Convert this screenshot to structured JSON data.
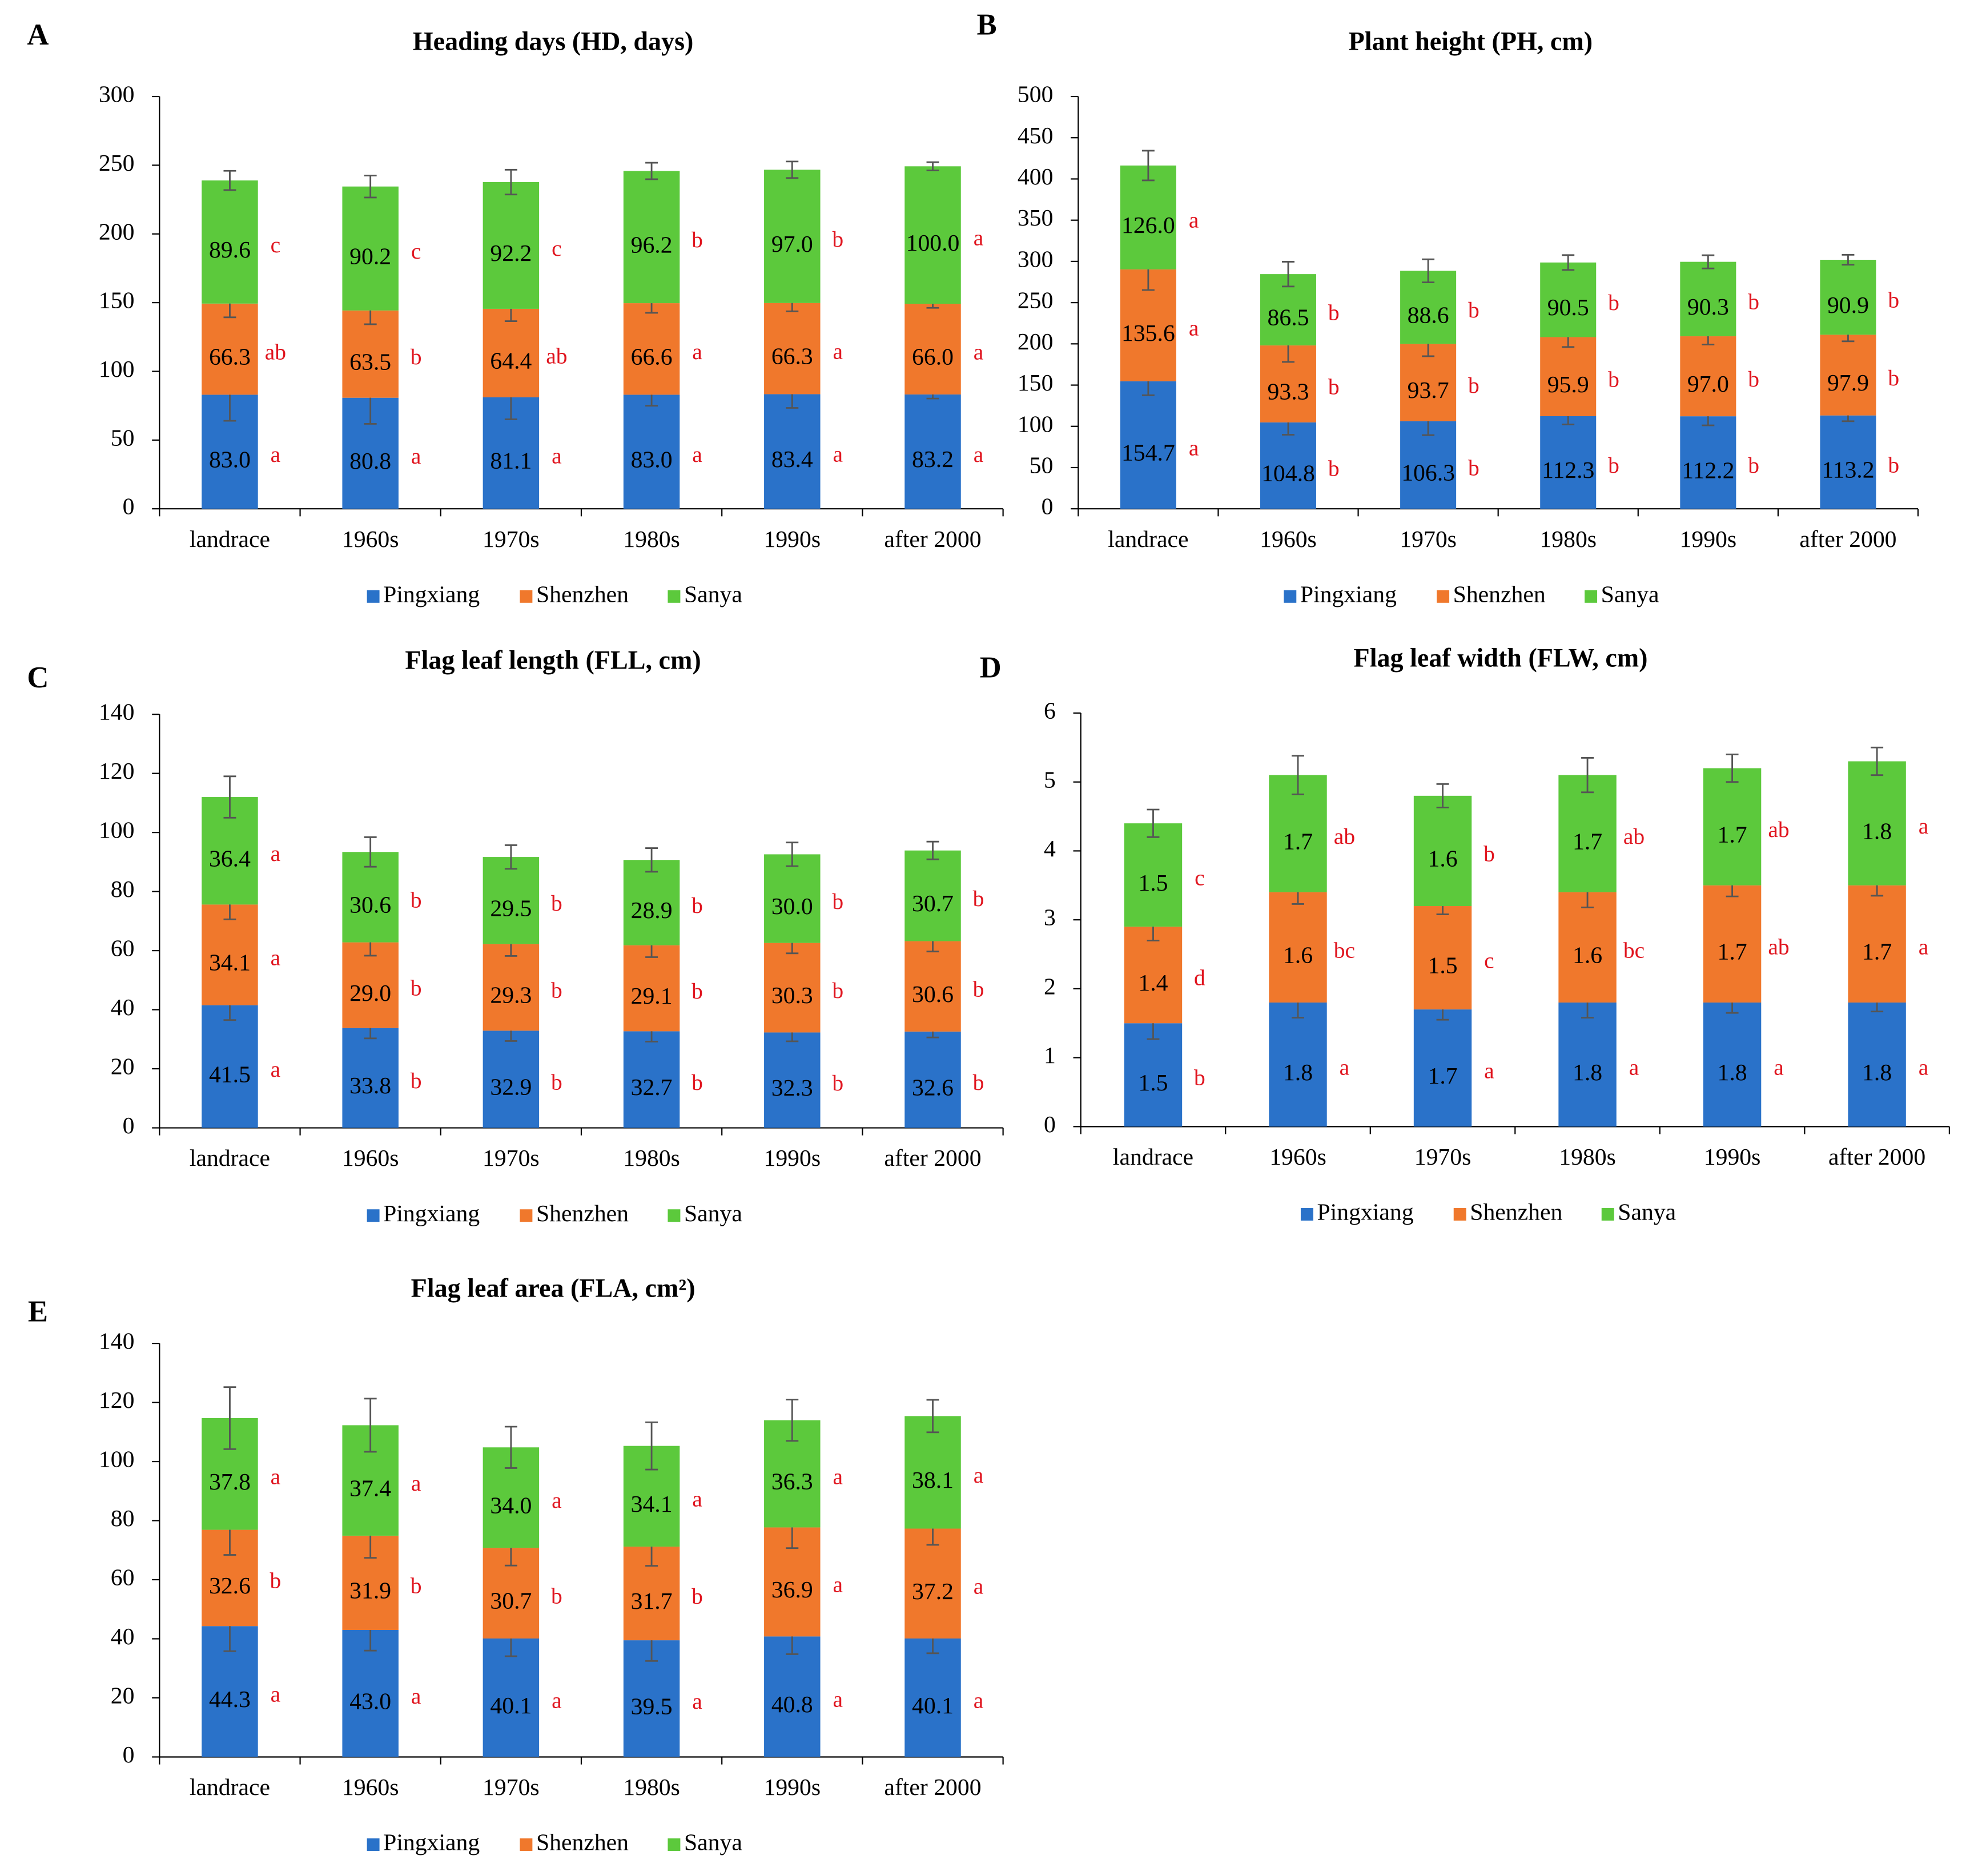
{
  "chart_data": [
    {
      "type": "bar",
      "label": "A",
      "title": "Heading days (HD, days)",
      "legend": "bottom",
      "categories": [
        "landrace",
        "1960s",
        "1970s",
        "1980s",
        "1990s",
        "after 2000"
      ],
      "ylim": [
        0,
        300
      ],
      "yticks": [
        0,
        50,
        100,
        150,
        200,
        250,
        300
      ],
      "series": [
        {
          "name": "Pingxiang",
          "color": "#2a72c9",
          "values": [
            83.0,
            80.8,
            81.1,
            83.0,
            83.4,
            83.2
          ],
          "value_labels": [
            "83.0",
            "80.8",
            "81.1",
            "83.0",
            "83.4",
            "83.2"
          ],
          "errors": [
            19,
            19,
            16,
            8,
            10,
            3
          ],
          "letters": [
            "a",
            "a",
            "a",
            "a",
            "a",
            "a"
          ]
        },
        {
          "name": "Shenzhen",
          "color": "#f0782c",
          "values": [
            66.3,
            63.5,
            64.4,
            66.6,
            66.3,
            66.0
          ],
          "value_labels": [
            "66.3",
            "63.5",
            "64.4",
            "66.6",
            "66.3",
            "66.0"
          ],
          "errors": [
            10,
            10,
            9,
            7,
            6,
            3
          ],
          "letters": [
            "ab",
            "b",
            "ab",
            "a",
            "a",
            "a"
          ]
        },
        {
          "name": "Sanya",
          "color": "#5cc93c",
          "values": [
            89.6,
            90.2,
            92.2,
            96.2,
            97.0,
            100.0
          ],
          "value_labels": [
            "89.6",
            "90.2",
            "92.2",
            "96.2",
            "97.0",
            "100.0"
          ],
          "errors": [
            7,
            8,
            9,
            6,
            6,
            3
          ],
          "letters": [
            "c",
            "c",
            "c",
            "b",
            "b",
            "a"
          ]
        }
      ]
    },
    {
      "type": "bar",
      "label": "B",
      "title": "Plant height (PH, cm)",
      "legend": "bottom",
      "categories": [
        "landrace",
        "1960s",
        "1970s",
        "1980s",
        "1990s",
        "after 2000"
      ],
      "ylim": [
        0,
        500
      ],
      "yticks": [
        0,
        50,
        100,
        150,
        200,
        250,
        300,
        350,
        400,
        450,
        500
      ],
      "series": [
        {
          "name": "Pingxiang",
          "color": "#2a72c9",
          "values": [
            154.7,
            104.8,
            106.3,
            112.3,
            112.2,
            113.2
          ],
          "value_labels": [
            "154.7",
            "104.8",
            "106.3",
            "112.3",
            "112.2",
            "113.2"
          ],
          "errors": [
            17,
            15,
            17,
            10,
            11,
            7
          ],
          "letters": [
            "a",
            "b",
            "b",
            "b",
            "b",
            "b"
          ]
        },
        {
          "name": "Shenzhen",
          "color": "#f0782c",
          "values": [
            135.6,
            93.3,
            93.7,
            95.9,
            97.0,
            97.9
          ],
          "value_labels": [
            "135.6",
            "93.3",
            "93.7",
            "95.9",
            "97.0",
            "97.9"
          ],
          "errors": [
            25,
            20,
            15,
            12,
            10,
            8
          ],
          "letters": [
            "a",
            "b",
            "b",
            "b",
            "b",
            "b"
          ]
        },
        {
          "name": "Sanya",
          "color": "#5cc93c",
          "values": [
            126.0,
            86.5,
            88.6,
            90.5,
            90.3,
            90.9
          ],
          "value_labels": [
            "126.0",
            "86.5",
            "88.6",
            "90.5",
            "90.3",
            "90.9"
          ],
          "errors": [
            18,
            15,
            14,
            9,
            8,
            6
          ],
          "letters": [
            "a",
            "b",
            "b",
            "b",
            "b",
            "b"
          ]
        }
      ]
    },
    {
      "type": "bar",
      "label": "C",
      "title": "Flag leaf length (FLL, cm)",
      "legend": "bottom",
      "categories": [
        "landrace",
        "1960s",
        "1970s",
        "1980s",
        "1990s",
        "after 2000"
      ],
      "ylim": [
        0,
        140
      ],
      "yticks": [
        0,
        20,
        40,
        60,
        80,
        100,
        120,
        140
      ],
      "series": [
        {
          "name": "Pingxiang",
          "color": "#2a72c9",
          "values": [
            41.5,
            33.8,
            32.9,
            32.7,
            32.3,
            32.6
          ],
          "value_labels": [
            "41.5",
            "33.8",
            "32.9",
            "32.7",
            "32.3",
            "32.6"
          ],
          "errors": [
            5,
            3.5,
            3.5,
            3.5,
            3,
            2
          ],
          "letters": [
            "a",
            "b",
            "b",
            "b",
            "b",
            "b"
          ]
        },
        {
          "name": "Shenzhen",
          "color": "#f0782c",
          "values": [
            34.1,
            29.0,
            29.3,
            29.1,
            30.3,
            30.6
          ],
          "value_labels": [
            "34.1",
            "29.0",
            "29.3",
            "29.1",
            "30.3",
            "30.6"
          ],
          "errors": [
            5,
            4.5,
            4,
            4,
            3.5,
            3.5
          ],
          "letters": [
            "a",
            "b",
            "b",
            "b",
            "b",
            "b"
          ]
        },
        {
          "name": "Sanya",
          "color": "#5cc93c",
          "values": [
            36.4,
            30.6,
            29.5,
            28.9,
            30.0,
            30.7
          ],
          "value_labels": [
            "36.4",
            "30.6",
            "29.5",
            "28.9",
            "30.0",
            "30.7"
          ],
          "errors": [
            7,
            5,
            4,
            4,
            4,
            3
          ],
          "letters": [
            "a",
            "b",
            "b",
            "b",
            "b",
            "b"
          ]
        }
      ]
    },
    {
      "type": "bar",
      "label": "D",
      "title": "Flag leaf width (FLW, cm)",
      "legend": "bottom",
      "categories": [
        "landrace",
        "1960s",
        "1970s",
        "1980s",
        "1990s",
        "after 2000"
      ],
      "ylim": [
        0,
        6
      ],
      "yticks": [
        0,
        1,
        2,
        3,
        4,
        5,
        6
      ],
      "series": [
        {
          "name": "Pingxiang",
          "color": "#2a72c9",
          "values": [
            1.5,
            1.8,
            1.7,
            1.8,
            1.8,
            1.8
          ],
          "errors": [
            0.23,
            0.22,
            0.15,
            0.22,
            0.15,
            0.13
          ],
          "letters": [
            "b",
            "a",
            "a",
            "a",
            "a",
            "a"
          ]
        },
        {
          "name": "Shenzhen",
          "color": "#f0782c",
          "values": [
            1.4,
            1.6,
            1.5,
            1.6,
            1.7,
            1.7
          ],
          "errors": [
            0.2,
            0.17,
            0.12,
            0.22,
            0.16,
            0.15
          ],
          "letters": [
            "d",
            "bc",
            "c",
            "bc",
            "ab",
            "a"
          ]
        },
        {
          "name": "Sanya",
          "color": "#5cc93c",
          "values": [
            1.5,
            1.7,
            1.6,
            1.7,
            1.7,
            1.8
          ],
          "errors": [
            0.2,
            0.28,
            0.17,
            0.25,
            0.2,
            0.2
          ],
          "letters": [
            "c",
            "ab",
            "b",
            "ab",
            "ab",
            "a"
          ]
        }
      ]
    },
    {
      "type": "bar",
      "label": "E",
      "title": "Flag leaf area (FLA, cm²)",
      "legend": "bottom",
      "categories": [
        "landrace",
        "1960s",
        "1970s",
        "1980s",
        "1990s",
        "after 2000"
      ],
      "ylim": [
        0,
        140
      ],
      "yticks": [
        0,
        20,
        40,
        60,
        80,
        100,
        120,
        140
      ],
      "series": [
        {
          "name": "Pingxiang",
          "color": "#2a72c9",
          "values": [
            44.3,
            43.0,
            40.1,
            39.5,
            40.8,
            40.1
          ],
          "value_labels": [
            "44.3",
            "43.0",
            "40.1",
            "39.5",
            "40.8",
            "40.1"
          ],
          "errors": [
            8.5,
            7,
            6,
            7,
            6,
            5
          ],
          "letters": [
            "a",
            "a",
            "a",
            "a",
            "a",
            "a"
          ]
        },
        {
          "name": "Shenzhen",
          "color": "#f0782c",
          "values": [
            32.6,
            31.9,
            30.7,
            31.7,
            36.9,
            37.2
          ],
          "value_labels": [
            "32.6",
            "31.9",
            "30.7",
            "31.7",
            "36.9",
            "37.2"
          ],
          "errors": [
            8.5,
            7.5,
            6,
            6.5,
            7,
            5.5
          ],
          "letters": [
            "b",
            "b",
            "b",
            "b",
            "a",
            "a"
          ]
        },
        {
          "name": "Sanya",
          "color": "#5cc93c",
          "values": [
            37.8,
            37.4,
            34.0,
            34.1,
            36.3,
            38.1
          ],
          "value_labels": [
            "37.8",
            "37.4",
            "34.0",
            "34.1",
            "36.3",
            "38.1"
          ],
          "errors": [
            10.5,
            9,
            7,
            8,
            7,
            5.5
          ],
          "letters": [
            "a",
            "a",
            "a",
            "a",
            "a",
            "a"
          ]
        }
      ]
    }
  ]
}
